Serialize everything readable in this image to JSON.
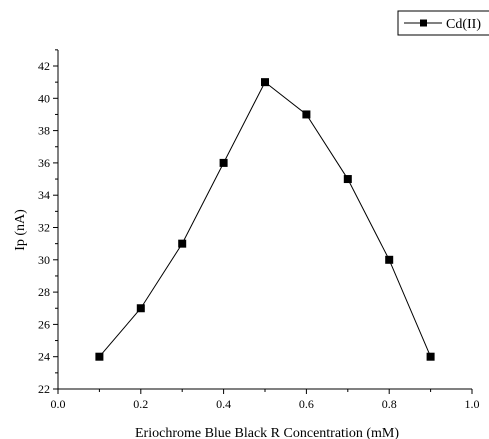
{
  "chart_data": {
    "type": "line",
    "title": "",
    "xlabel": "Eriochrome Blue Black R Concentration (mM)",
    "ylabel": "Ip (nA)",
    "xlim": [
      0.0,
      1.0
    ],
    "ylim": [
      22,
      43
    ],
    "x_ticks": [
      "0.0",
      "0.2",
      "0.4",
      "0.6",
      "0.8",
      "1.0"
    ],
    "y_ticks": [
      "22",
      "24",
      "26",
      "28",
      "30",
      "32",
      "34",
      "36",
      "38",
      "40",
      "42"
    ],
    "grid": false,
    "legend_position": "top-right",
    "marker": "square",
    "color": "#000000",
    "series": [
      {
        "name": "Cd(II)",
        "x": [
          0.1,
          0.2,
          0.3,
          0.4,
          0.5,
          0.6,
          0.7,
          0.8,
          0.9
        ],
        "y": [
          24,
          27,
          31,
          36,
          41,
          39,
          35,
          30,
          24
        ]
      }
    ]
  }
}
